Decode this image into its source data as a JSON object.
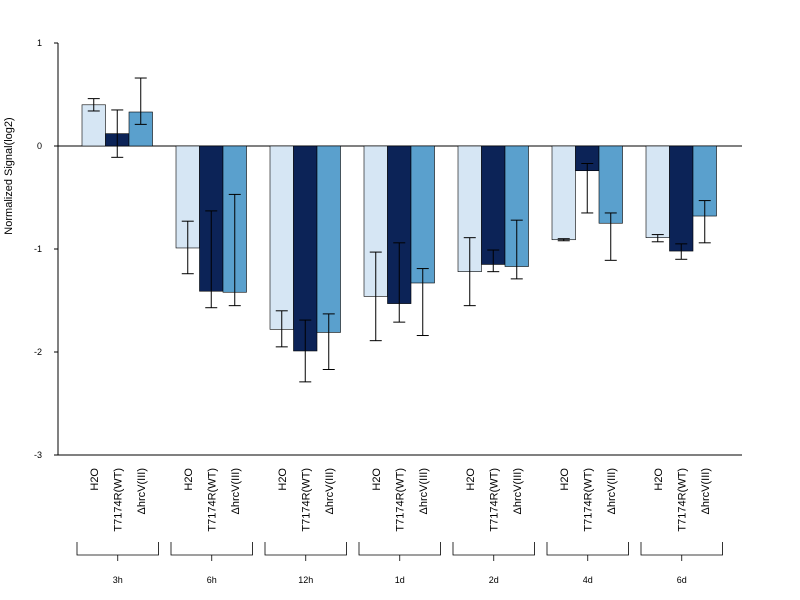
{
  "chart_data": {
    "type": "bar",
    "ylabel": "Normalized Signal(log2)",
    "ylim": [
      -3,
      1
    ],
    "yticks": [
      "1",
      "0",
      "-1",
      "-2",
      "-3"
    ],
    "grid": false,
    "baseline": 0,
    "series_names": [
      "H2O",
      "T7174R(WT)",
      "ΔhrcV(III)"
    ],
    "series_colors": [
      "#d6e6f4",
      "#0c2357",
      "#5aa0cd"
    ],
    "groups": [
      {
        "label": "3h",
        "values": [
          0.4,
          0.12,
          0.33
        ],
        "err_low": [
          0.34,
          -0.11,
          0.21
        ],
        "err_high": [
          0.46,
          0.35,
          0.66
        ]
      },
      {
        "label": "6h",
        "values": [
          -0.99,
          -1.41,
          -1.42
        ],
        "err_low": [
          -1.24,
          -1.57,
          -1.55
        ],
        "err_high": [
          -0.73,
          -0.63,
          -0.47
        ]
      },
      {
        "label": "12h",
        "values": [
          -1.78,
          -1.99,
          -1.81
        ],
        "err_low": [
          -1.95,
          -2.29,
          -2.17
        ],
        "err_high": [
          -1.6,
          -1.69,
          -1.63
        ]
      },
      {
        "label": "1d",
        "values": [
          -1.46,
          -1.53,
          -1.33
        ],
        "err_low": [
          -1.89,
          -1.71,
          -1.84
        ],
        "err_high": [
          -1.03,
          -0.94,
          -1.19
        ]
      },
      {
        "label": "2d",
        "values": [
          -1.22,
          -1.15,
          -1.17
        ],
        "err_low": [
          -1.55,
          -1.22,
          -1.29
        ],
        "err_high": [
          -0.89,
          -1.01,
          -0.72
        ]
      },
      {
        "label": "4d",
        "values": [
          -0.91,
          -0.24,
          -0.75
        ],
        "err_low": [
          -0.92,
          -0.65,
          -1.11
        ],
        "err_high": [
          -0.9,
          -0.17,
          -0.65
        ]
      },
      {
        "label": "6d",
        "values": [
          -0.89,
          -1.02,
          -0.68
        ],
        "err_low": [
          -0.93,
          -1.1,
          -0.94
        ],
        "err_high": [
          -0.86,
          -0.95,
          -0.53
        ]
      }
    ]
  }
}
